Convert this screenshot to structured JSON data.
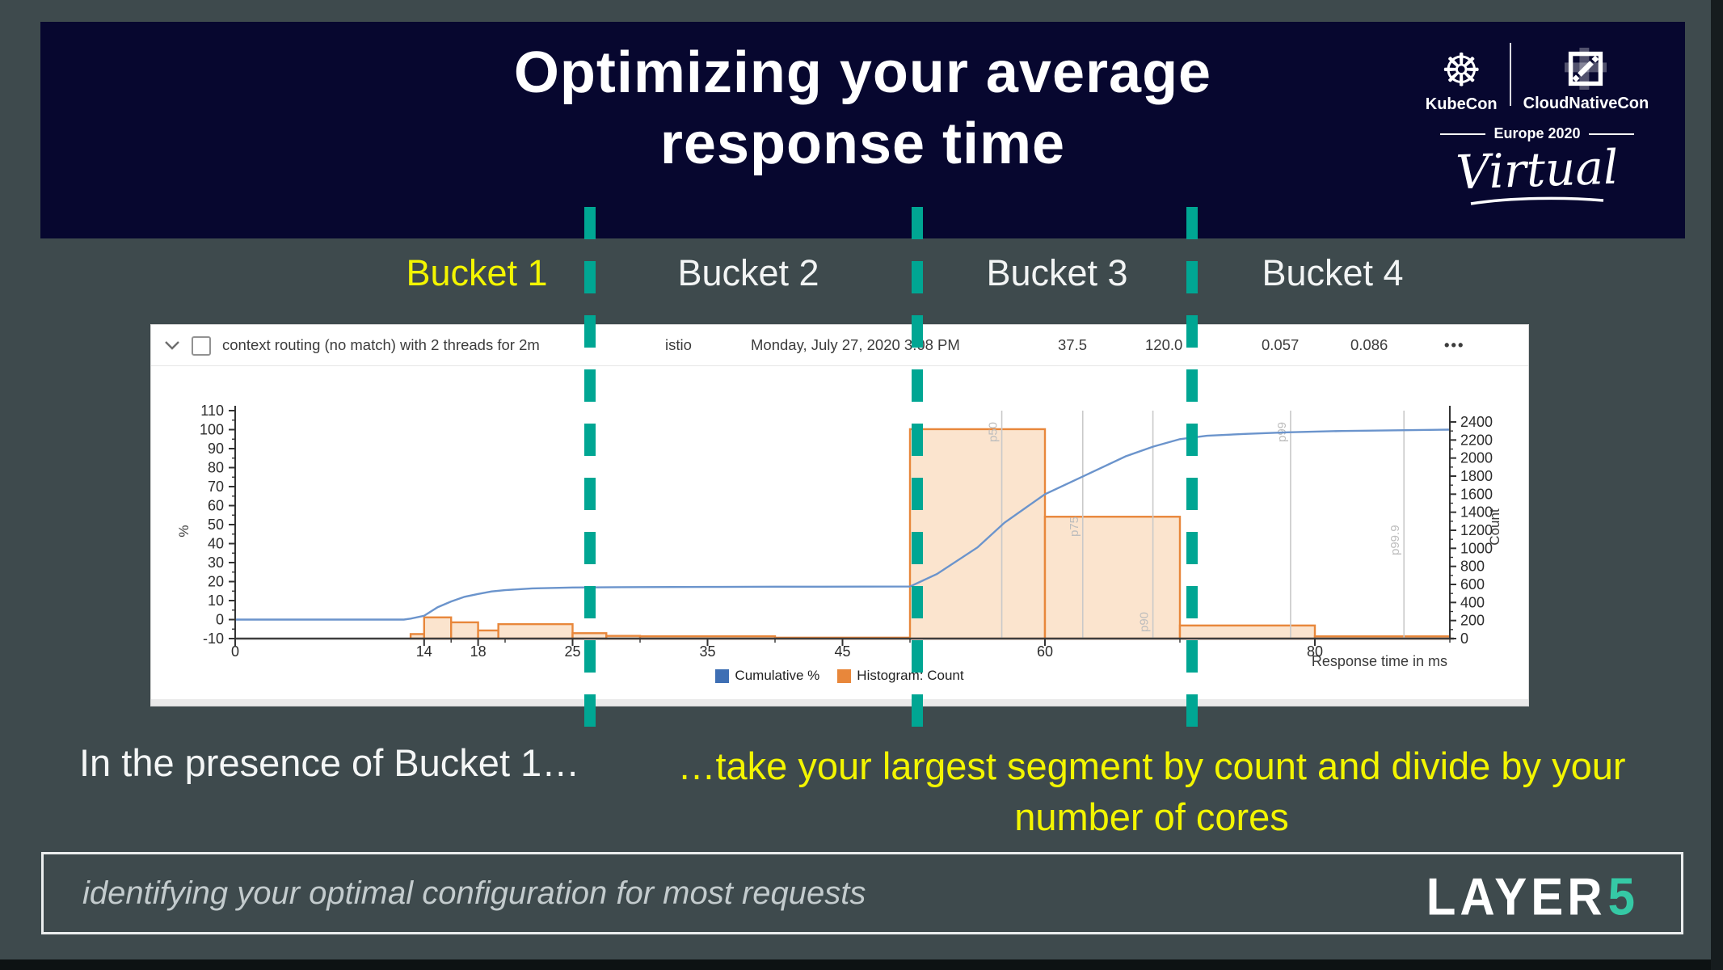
{
  "slide": {
    "title_lines": [
      "Optimizing your average",
      "response time"
    ],
    "caption_left": "In the presence of Bucket 1…",
    "caption_right_line1": "…take your largest segment by count and divide by your",
    "caption_right_line2": "number of cores",
    "footer_tagline": "identifying your optimal configuration for most requests",
    "colors": {
      "teal_divider": "#00A693",
      "yellow_highlight": "#F3F500",
      "header_navy": "#07072F",
      "slide_slate": "#3E4A4D",
      "layer5_accent": "#35C9A5"
    }
  },
  "event_logo": {
    "kubecon": "KubeCon",
    "cloudnativecon": "CloudNativeCon",
    "edition": "Europe 2020",
    "virtual": "Virtual"
  },
  "layer5": {
    "name_main": "LAYER",
    "name_accent": "5"
  },
  "buckets": [
    {
      "label": "Bucket 1",
      "color": "#F3F500"
    },
    {
      "label": "Bucket 2",
      "color": "#F2F4F4"
    },
    {
      "label": "Bucket 3",
      "color": "#F2F4F4"
    },
    {
      "label": "Bucket 4",
      "color": "#F2F4F4"
    }
  ],
  "result_row": {
    "title": "context routing (no match) with 2 threads for 2m",
    "mesh": "istio",
    "date": "Monday, July 27, 2020 3:08 PM",
    "stats": [
      "37.5",
      "120.0",
      "0.057",
      "0.086"
    ],
    "more_label": "•••"
  },
  "chart_data": {
    "type": "bar",
    "subtype": "latency-histogram-with-cumulative-line",
    "title": "context routing (no match) with 2 threads for 2m",
    "legend": [
      {
        "label": "Cumulative %",
        "color": "#3E6FB4"
      },
      {
        "label": "Histogram: Count",
        "color": "#E8873B"
      }
    ],
    "axes": {
      "x": {
        "label": "Response time in ms",
        "range": [
          0,
          90
        ],
        "ticks": [
          0,
          14,
          18,
          25,
          35,
          45,
          60,
          80
        ],
        "minor": [
          16,
          20,
          30,
          40,
          50,
          70,
          90
        ]
      },
      "y_left": {
        "label": "%",
        "range": [
          -10,
          110
        ],
        "tick_step": 10
      },
      "y_right": {
        "label": "Count",
        "range": [
          0,
          2400
        ],
        "tick_step": 200
      }
    },
    "series": [
      {
        "name": "Cumulative %",
        "type": "line",
        "color": "#6B94CC",
        "points": [
          [
            0,
            0
          ],
          [
            12.5,
            0
          ],
          [
            13,
            0.5
          ],
          [
            14,
            2
          ],
          [
            15,
            6.5
          ],
          [
            16,
            9.5
          ],
          [
            17,
            12
          ],
          [
            18,
            13.5
          ],
          [
            19,
            14.8
          ],
          [
            20,
            15.5
          ],
          [
            22,
            16.4
          ],
          [
            25,
            16.9
          ],
          [
            30,
            17.1
          ],
          [
            35,
            17.2
          ],
          [
            40,
            17.3
          ],
          [
            50,
            17.4
          ],
          [
            52,
            24
          ],
          [
            55,
            38
          ],
          [
            57,
            51
          ],
          [
            60,
            66
          ],
          [
            63,
            76
          ],
          [
            66,
            86
          ],
          [
            68,
            91
          ],
          [
            70,
            95
          ],
          [
            72,
            96.8
          ],
          [
            75,
            97.8
          ],
          [
            78,
            98.6
          ],
          [
            82,
            99.3
          ],
          [
            90,
            100
          ]
        ]
      },
      {
        "name": "Histogram: Count",
        "type": "bars",
        "color": "#E8873B",
        "fill": "#FBE4CE",
        "bars": [
          [
            13,
            14,
            50
          ],
          [
            14,
            16,
            235
          ],
          [
            16,
            18,
            180
          ],
          [
            18,
            19.5,
            90
          ],
          [
            19.5,
            25,
            160
          ],
          [
            25,
            27.5,
            60
          ],
          [
            27.5,
            30,
            30
          ],
          [
            30,
            40,
            26
          ],
          [
            40,
            50,
            10
          ],
          [
            50,
            60,
            2320
          ],
          [
            60,
            70,
            1350
          ],
          [
            70,
            80,
            145
          ],
          [
            80,
            90,
            25
          ]
        ]
      }
    ],
    "percentiles": [
      {
        "name": "p50",
        "x": 56.8
      },
      {
        "name": "p75",
        "x": 62.8
      },
      {
        "name": "p90",
        "x": 68.0
      },
      {
        "name": "p99",
        "x": 78.2
      },
      {
        "name": "p99.9",
        "x": 86.6
      }
    ]
  }
}
